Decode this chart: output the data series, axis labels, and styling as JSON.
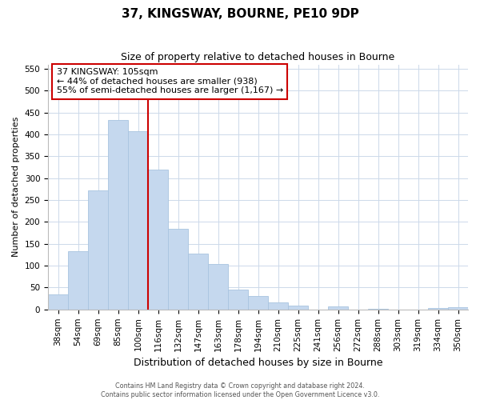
{
  "title": "37, KINGSWAY, BOURNE, PE10 9DP",
  "subtitle": "Size of property relative to detached houses in Bourne",
  "xlabel": "Distribution of detached houses by size in Bourne",
  "ylabel": "Number of detached properties",
  "bar_labels": [
    "38sqm",
    "54sqm",
    "69sqm",
    "85sqm",
    "100sqm",
    "116sqm",
    "132sqm",
    "147sqm",
    "163sqm",
    "178sqm",
    "194sqm",
    "210sqm",
    "225sqm",
    "241sqm",
    "256sqm",
    "272sqm",
    "288sqm",
    "303sqm",
    "319sqm",
    "334sqm",
    "350sqm"
  ],
  "bar_values": [
    35,
    133,
    272,
    433,
    407,
    320,
    184,
    127,
    103,
    45,
    30,
    17,
    8,
    0,
    7,
    0,
    2,
    0,
    0,
    3,
    5
  ],
  "bar_color": "#c5d8ee",
  "bar_edge_color": "#a8c4e0",
  "vline_x": 4.5,
  "vline_color": "#cc0000",
  "annotation_text": "37 KINGSWAY: 105sqm\n← 44% of detached houses are smaller (938)\n55% of semi-detached houses are larger (1,167) →",
  "annotation_box_color": "#ffffff",
  "annotation_box_edge": "#cc0000",
  "ylim": [
    0,
    560
  ],
  "yticks": [
    0,
    50,
    100,
    150,
    200,
    250,
    300,
    350,
    400,
    450,
    500,
    550
  ],
  "footer_line1": "Contains HM Land Registry data © Crown copyright and database right 2024.",
  "footer_line2": "Contains public sector information licensed under the Open Government Licence v3.0.",
  "background_color": "#ffffff",
  "grid_color": "#ccd9ea",
  "title_fontsize": 11,
  "subtitle_fontsize": 9,
  "tick_fontsize": 7.5,
  "ylabel_fontsize": 8,
  "xlabel_fontsize": 9,
  "footer_fontsize": 5.8
}
